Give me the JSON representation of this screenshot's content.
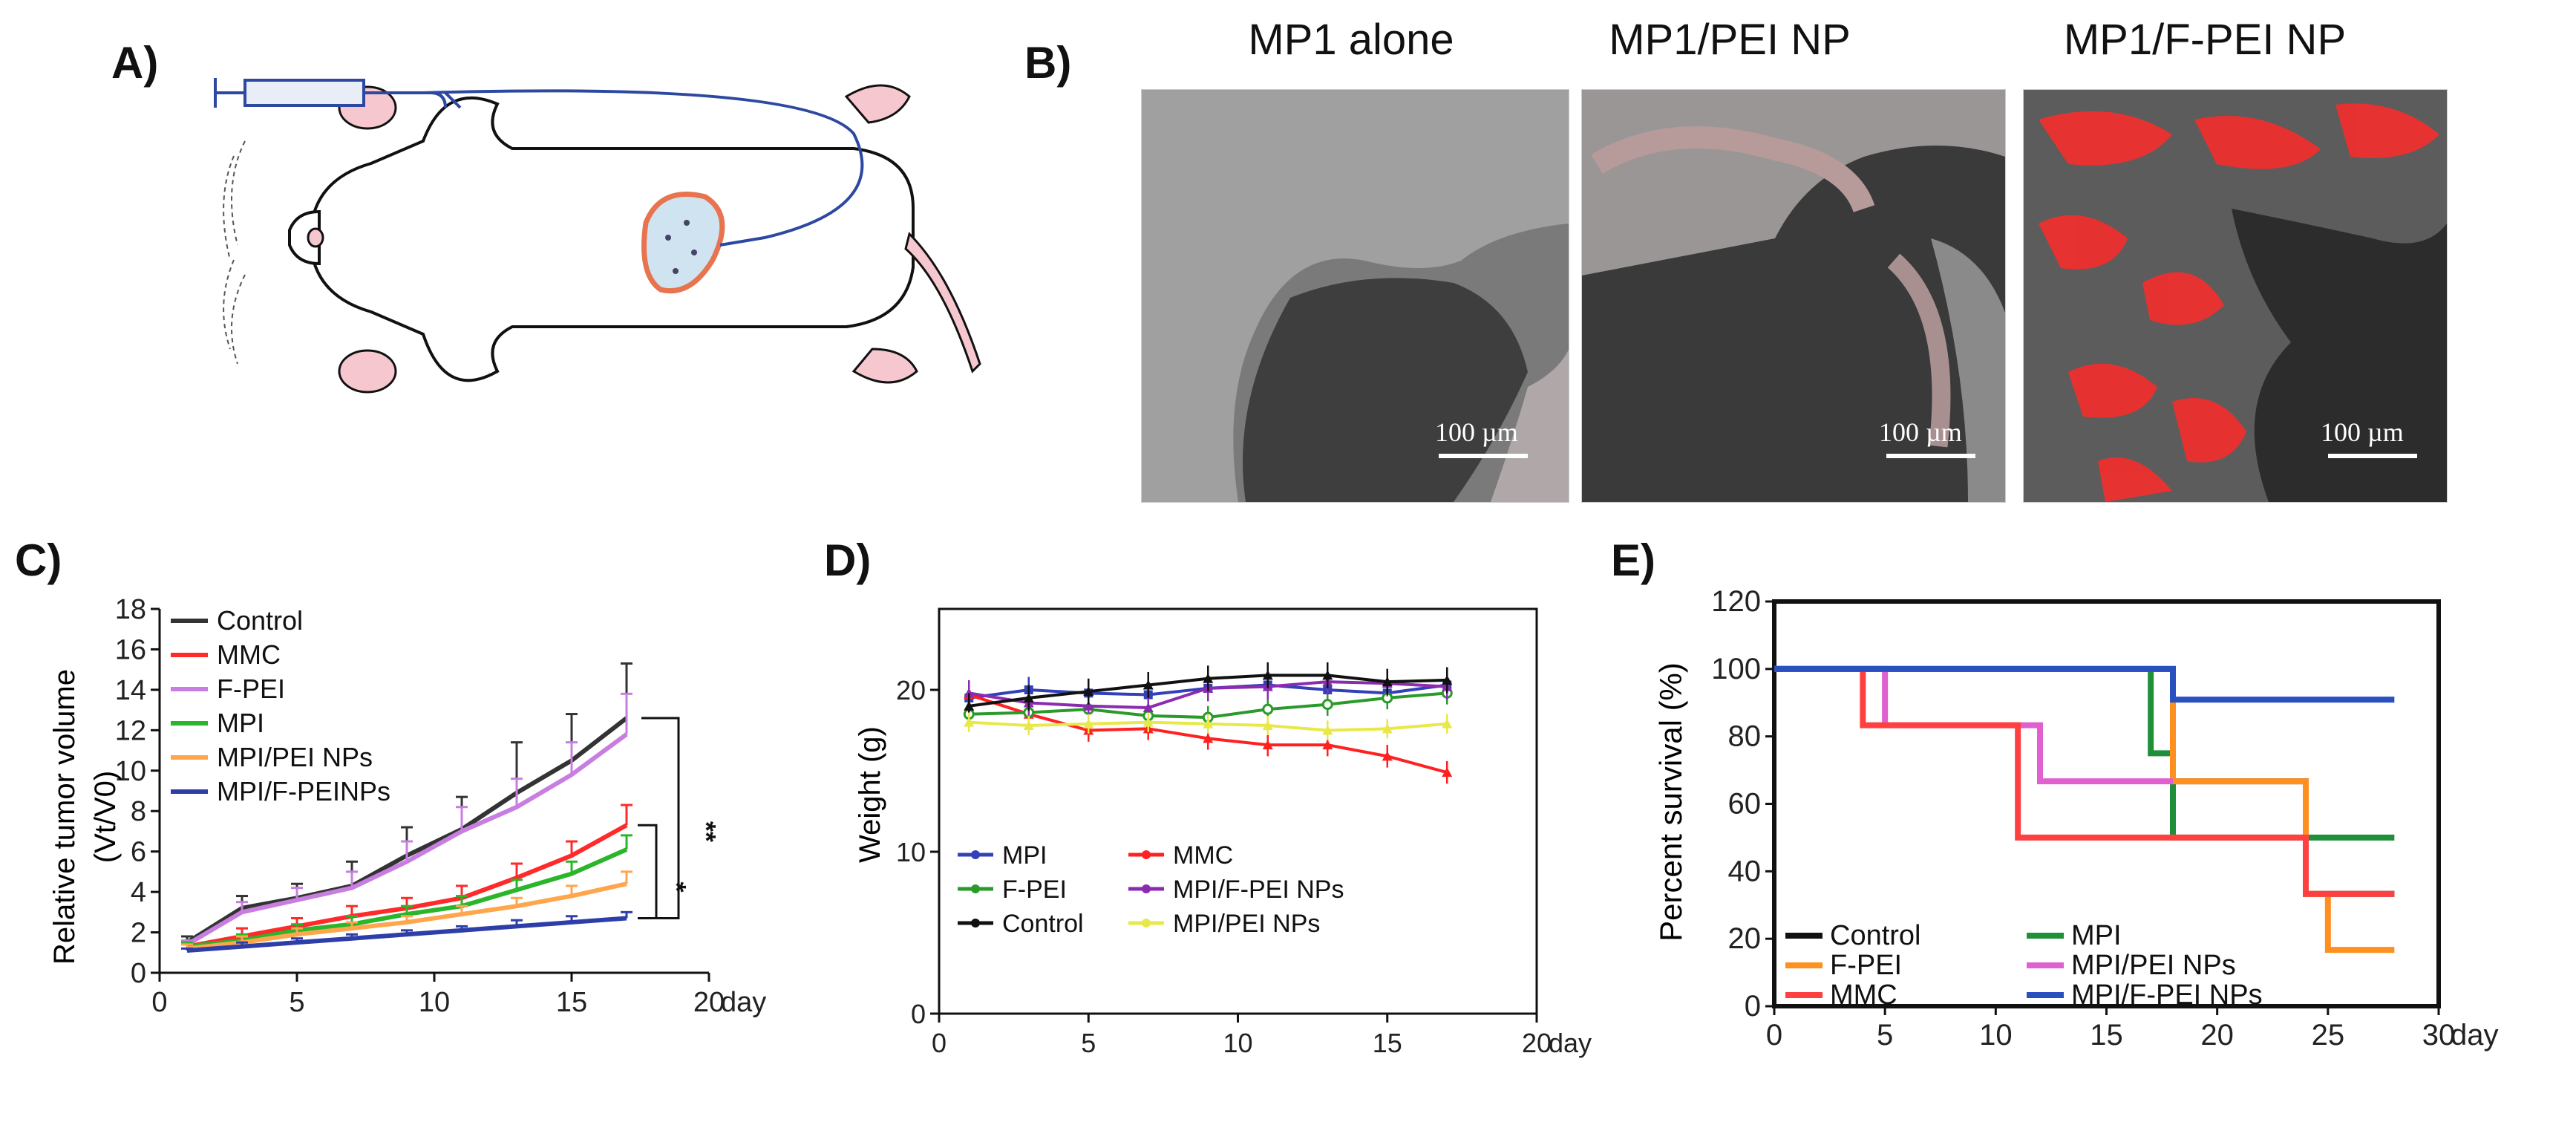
{
  "panels": {
    "A": {
      "letter": "A)"
    },
    "B": {
      "letter": "B)",
      "images": [
        {
          "title": "MP1 alone",
          "scale": "100 µm",
          "red_level": 0.05
        },
        {
          "title": "MP1/PEI NP",
          "scale": "100 µm",
          "red_level": 0.15
        },
        {
          "title": "MP1/F-PEI NP",
          "scale": "100 µm",
          "red_level": 0.8
        }
      ]
    },
    "C": {
      "letter": "C)"
    },
    "D": {
      "letter": "D)"
    },
    "E": {
      "letter": "E)"
    }
  },
  "chart_data": [
    {
      "id": "C",
      "type": "line",
      "ylabel_line1": "Relative tumor volume",
      "ylabel_line2": "(Vt/V0)",
      "xunit": "day",
      "xlim": [
        0,
        20
      ],
      "ylim": [
        0,
        18
      ],
      "xticks": [
        0,
        5,
        10,
        15,
        20
      ],
      "yticks": [
        0,
        2,
        4,
        6,
        8,
        10,
        12,
        14,
        16,
        18
      ],
      "legend_position": "top-left",
      "significance": [
        "**",
        "*"
      ],
      "x": [
        1,
        3,
        5,
        7,
        9,
        11,
        13,
        15,
        17
      ],
      "series": [
        {
          "name": "Control",
          "color": "#333333",
          "values": [
            1.5,
            3.2,
            3.7,
            4.3,
            5.8,
            7.1,
            8.9,
            10.5,
            12.6
          ],
          "err": [
            0.3,
            0.6,
            0.7,
            1.2,
            1.4,
            1.6,
            2.5,
            2.3,
            2.7
          ]
        },
        {
          "name": "MMC",
          "color": "#ff2a2a",
          "values": [
            1.3,
            1.8,
            2.3,
            2.8,
            3.2,
            3.7,
            4.7,
            5.8,
            7.3
          ],
          "err": [
            0.2,
            0.4,
            0.4,
            0.5,
            0.5,
            0.6,
            0.7,
            0.7,
            1.0
          ]
        },
        {
          "name": "F-PEI",
          "color": "#c77ee0",
          "values": [
            1.4,
            3.0,
            3.6,
            4.2,
            5.5,
            7.0,
            8.2,
            9.8,
            11.8
          ],
          "err": [
            0.2,
            0.5,
            0.6,
            0.8,
            1.0,
            1.2,
            1.4,
            1.6,
            2.0
          ]
        },
        {
          "name": "MPI",
          "color": "#2bb52b",
          "values": [
            1.3,
            1.6,
            2.1,
            2.4,
            2.9,
            3.3,
            4.1,
            4.9,
            6.1
          ],
          "err": [
            0.2,
            0.3,
            0.3,
            0.4,
            0.4,
            0.5,
            0.5,
            0.6,
            0.7
          ]
        },
        {
          "name": "MPI/PEI NPs",
          "color": "#ffa64d",
          "values": [
            1.2,
            1.5,
            1.9,
            2.2,
            2.5,
            2.9,
            3.3,
            3.8,
            4.4
          ],
          "err": [
            0.2,
            0.3,
            0.3,
            0.3,
            0.3,
            0.4,
            0.4,
            0.5,
            0.6
          ]
        },
        {
          "name": "MPI/F-PEINPs",
          "color": "#2e3ea8",
          "values": [
            1.1,
            1.3,
            1.5,
            1.7,
            1.9,
            2.1,
            2.3,
            2.5,
            2.7
          ],
          "err": [
            0.1,
            0.2,
            0.2,
            0.2,
            0.2,
            0.2,
            0.3,
            0.3,
            0.3
          ]
        }
      ]
    },
    {
      "id": "D",
      "type": "line",
      "ylabel": "Weight (g)",
      "xunit": "day",
      "xlim": [
        0,
        20
      ],
      "ylim": [
        0,
        25
      ],
      "xticks": [
        0,
        5,
        10,
        15,
        20
      ],
      "yticks": [
        0,
        10,
        20
      ],
      "legend_position": "bottom-left",
      "x": [
        1,
        3,
        5,
        7,
        9,
        11,
        13,
        15,
        17
      ],
      "series": [
        {
          "name": "MPI",
          "color": "#3340b8",
          "marker": "square",
          "values": [
            19.5,
            20.0,
            19.8,
            19.7,
            20.1,
            20.3,
            20.0,
            19.8,
            20.3
          ],
          "err": [
            0.8,
            0.8,
            0.8,
            0.8,
            0.8,
            0.8,
            0.8,
            0.8,
            0.8
          ]
        },
        {
          "name": "MMC",
          "color": "#ff2020",
          "marker": "triangle",
          "values": [
            19.7,
            18.5,
            17.5,
            17.6,
            17.0,
            16.6,
            16.6,
            15.9,
            14.9
          ],
          "err": [
            0.8,
            0.7,
            0.7,
            0.7,
            0.7,
            0.7,
            0.7,
            0.7,
            0.7
          ]
        },
        {
          "name": "F-PEI",
          "color": "#2a9a2a",
          "marker": "circle",
          "values": [
            18.5,
            18.6,
            18.8,
            18.4,
            18.3,
            18.8,
            19.1,
            19.5,
            19.8
          ],
          "err": [
            0.8,
            0.7,
            0.7,
            0.7,
            0.7,
            0.7,
            0.7,
            0.7,
            0.7
          ]
        },
        {
          "name": "MPI/F-PEI NPs",
          "color": "#8a2bb0",
          "marker": "triangle",
          "values": [
            19.8,
            19.2,
            19.0,
            18.9,
            20.1,
            20.2,
            20.5,
            20.4,
            20.2
          ],
          "err": [
            0.8,
            0.8,
            0.8,
            0.8,
            0.8,
            0.8,
            0.8,
            0.8,
            0.8
          ]
        },
        {
          "name": "Control",
          "color": "#111111",
          "marker": "triangle",
          "values": [
            19.0,
            19.5,
            19.9,
            20.3,
            20.7,
            20.9,
            20.9,
            20.5,
            20.6
          ],
          "err": [
            0.8,
            0.8,
            0.8,
            0.8,
            0.8,
            0.8,
            0.8,
            0.8,
            0.8
          ]
        },
        {
          "name": "MPI/PEI NPs",
          "color": "#e8e84a",
          "marker": "triangle",
          "values": [
            18.0,
            17.8,
            17.9,
            18.0,
            17.9,
            17.8,
            17.5,
            17.6,
            17.9
          ],
          "err": [
            0.6,
            0.6,
            0.6,
            0.6,
            0.6,
            0.6,
            0.6,
            0.6,
            0.6
          ]
        }
      ]
    },
    {
      "id": "E",
      "type": "line",
      "ylabel": "Percent survival (%)",
      "xunit": "day",
      "xlim": [
        0,
        30
      ],
      "ylim": [
        0,
        120
      ],
      "xticks": [
        0,
        5,
        10,
        15,
        20,
        25,
        30
      ],
      "yticks": [
        0,
        20,
        40,
        60,
        80,
        100,
        120
      ],
      "legend_position": "bottom-left",
      "series": [
        {
          "name": "Control",
          "color": "#111111",
          "points": [
            [
              0,
              100
            ],
            [
              18,
              100
            ],
            [
              18,
              66.7
            ],
            [
              24,
              66.7
            ],
            [
              24,
              33.3
            ],
            [
              28,
              33.3
            ]
          ]
        },
        {
          "name": "MPI",
          "color": "#1f8f3a",
          "points": [
            [
              0,
              100
            ],
            [
              17,
              100
            ],
            [
              17,
              75
            ],
            [
              18,
              75
            ],
            [
              18,
              50
            ],
            [
              24,
              50
            ],
            [
              24,
              50
            ],
            [
              28,
              50
            ]
          ]
        },
        {
          "name": "F-PEI",
          "color": "#ff9020",
          "points": [
            [
              0,
              100
            ],
            [
              18,
              100
            ],
            [
              18,
              66.7
            ],
            [
              24,
              66.7
            ],
            [
              24,
              33.3
            ],
            [
              25,
              33.3
            ],
            [
              25,
              16.7
            ],
            [
              28,
              16.7
            ]
          ]
        },
        {
          "name": "MPI/PEI NPs",
          "color": "#e060d0",
          "points": [
            [
              0,
              100
            ],
            [
              5,
              100
            ],
            [
              5,
              83.3
            ],
            [
              12,
              83.3
            ],
            [
              12,
              66.7
            ],
            [
              18,
              66.7
            ]
          ]
        },
        {
          "name": "MMC",
          "color": "#ff4040",
          "points": [
            [
              0,
              100
            ],
            [
              4,
              100
            ],
            [
              4,
              83.3
            ],
            [
              11,
              83.3
            ],
            [
              11,
              50
            ],
            [
              24,
              50
            ],
            [
              24,
              33.3
            ],
            [
              28,
              33.3
            ]
          ]
        },
        {
          "name": "MPI/F-PEI NPs",
          "color": "#2a4fc0",
          "points": [
            [
              0,
              100
            ],
            [
              18,
              100
            ],
            [
              18,
              90.9
            ],
            [
              28,
              90.9
            ]
          ]
        }
      ]
    }
  ]
}
